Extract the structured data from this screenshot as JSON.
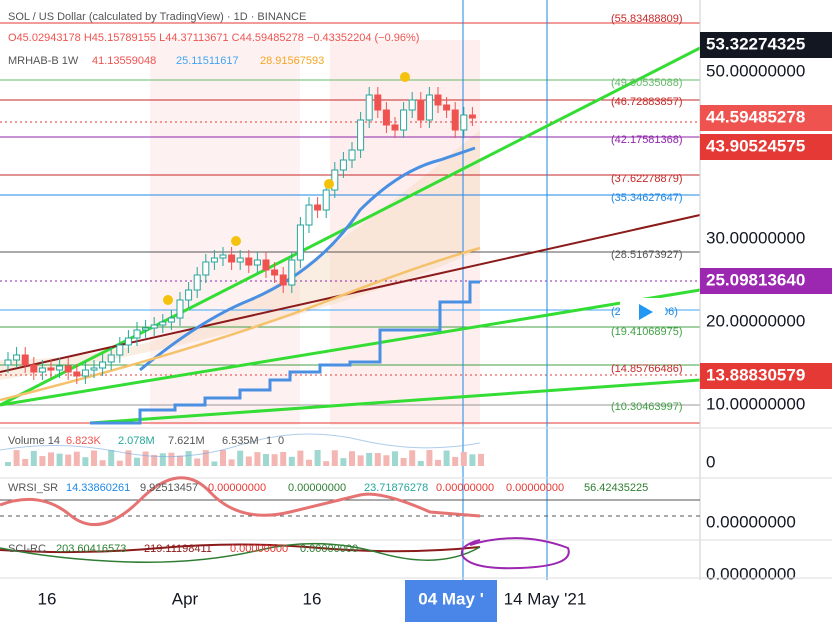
{
  "header": {
    "title": "SOL / US Dollar (calculated by TradingView) · 1D · BINANCE",
    "ohlc": "O45.02943178 H45.15789155 L44.37113671 C44.59485278 −0.43352204 (−0.96%)"
  },
  "indicators": {
    "mrhab": {
      "name": "MRHAB-B 1W",
      "values": [
        "41.13559048",
        "25.11511617",
        "28.91567593"
      ]
    },
    "volume": {
      "name": "Volume 14",
      "values": [
        "6.823K",
        "2.078M",
        "7.621M",
        "6.535M",
        "1",
        "0"
      ]
    },
    "wrsi": {
      "name": "WRSI_SR",
      "values": [
        "14.33860261",
        "9.92513457",
        "0.00000000",
        "0.00000000",
        "23.71876278",
        "0.00000000",
        "0.00000000",
        "56.42435225"
      ]
    },
    "sci": {
      "name": "SCI-RC",
      "values": [
        "203.60416573",
        "219.11198411",
        "0.00000000",
        "0.00000000"
      ]
    }
  },
  "levels": [
    "(55.83488809)",
    "(49.00535088)",
    "(46.72883857)",
    "(42.17581368)",
    "(37.62278879)",
    "(35.34627647)",
    "(28.51673927)",
    "(2",
    "06)",
    "(19.41068975)",
    "(14.85766486)",
    "(10.30463997)"
  ],
  "price_axis": {
    "labels": [
      "50.00000000",
      "30.00000000",
      "20.00000000",
      "10.00000000"
    ],
    "tags": [
      "53.32274325",
      "44.59485278",
      "43.90524575",
      "25.09813640",
      "13.88830579"
    ],
    "pane_labels": [
      "0",
      "0.00000000",
      "0.00000000"
    ]
  },
  "time_axis": {
    "labels": [
      "16",
      "Apr",
      "16",
      "14 May '21"
    ],
    "cursor": "04 May '"
  }
}
